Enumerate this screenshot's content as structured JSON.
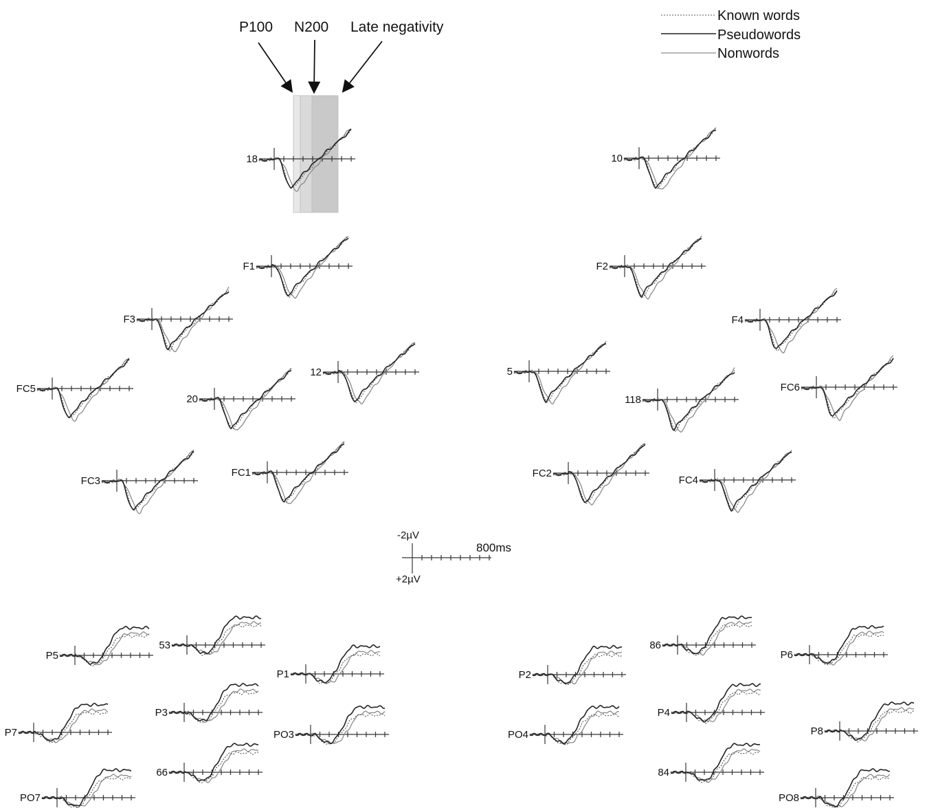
{
  "chart_data": {
    "type": "line",
    "legend": {
      "placement": "top-right",
      "entries": [
        {
          "name": "Known words",
          "style": "dotted",
          "color": "#555555"
        },
        {
          "name": "Pseudowords",
          "style": "solid dark",
          "color": "#222222"
        },
        {
          "name": "Nonwords",
          "style": "solid light",
          "color": "#8a8a8a"
        }
      ]
    },
    "annotations": {
      "components": [
        "P100",
        "N200",
        "Late negativity"
      ],
      "component_windows": [
        {
          "from": 0.26,
          "to": 0.36
        },
        {
          "from": 0.36,
          "to": 0.53
        },
        {
          "from": 0.53,
          "to": 0.91
        }
      ]
    },
    "scale_bar": {
      "top_label": "-2µV",
      "bottom_label": "+2µV",
      "time_label": "800ms"
    },
    "x_axis": {
      "unit": "ms",
      "range": [
        -100,
        800
      ],
      "tick_step": 100
    },
    "y_axis": {
      "unit": "µV",
      "negative_up": true
    },
    "series": [
      "Known words",
      "Pseudowords",
      "Nonwords"
    ],
    "frontal_component_latencies": {
      "N200_trough_pseudowords_ms": 220,
      "N200_trough_nonwords_ms": 280
    },
    "electrodes": [
      {
        "label": "18",
        "group": "frontal",
        "highlighted": true
      },
      {
        "label": "10",
        "group": "frontal"
      },
      {
        "label": "F1",
        "group": "frontal"
      },
      {
        "label": "F2",
        "group": "frontal"
      },
      {
        "label": "F3",
        "group": "frontal"
      },
      {
        "label": "F4",
        "group": "frontal"
      },
      {
        "label": "FC5",
        "group": "frontal"
      },
      {
        "label": "20",
        "group": "frontal"
      },
      {
        "label": "12",
        "group": "frontal"
      },
      {
        "label": "5",
        "group": "frontal"
      },
      {
        "label": "118",
        "group": "frontal"
      },
      {
        "label": "FC6",
        "group": "frontal"
      },
      {
        "label": "FC3",
        "group": "frontal"
      },
      {
        "label": "FC1",
        "group": "frontal"
      },
      {
        "label": "FC2",
        "group": "frontal"
      },
      {
        "label": "FC4",
        "group": "frontal"
      },
      {
        "label": "P5",
        "group": "parietal"
      },
      {
        "label": "53",
        "group": "parietal"
      },
      {
        "label": "P1",
        "group": "parietal"
      },
      {
        "label": "P2",
        "group": "parietal"
      },
      {
        "label": "86",
        "group": "parietal"
      },
      {
        "label": "P6",
        "group": "parietal"
      },
      {
        "label": "P7",
        "group": "parietal"
      },
      {
        "label": "P3",
        "group": "parietal"
      },
      {
        "label": "PO3",
        "group": "parietal"
      },
      {
        "label": "PO4",
        "group": "parietal"
      },
      {
        "label": "P4",
        "group": "parietal"
      },
      {
        "label": "P8",
        "group": "parietal"
      },
      {
        "label": "66",
        "group": "parietal"
      },
      {
        "label": "84",
        "group": "parietal"
      },
      {
        "label": "PO7",
        "group": "parietal"
      },
      {
        "label": "PO8",
        "group": "parietal"
      }
    ]
  }
}
